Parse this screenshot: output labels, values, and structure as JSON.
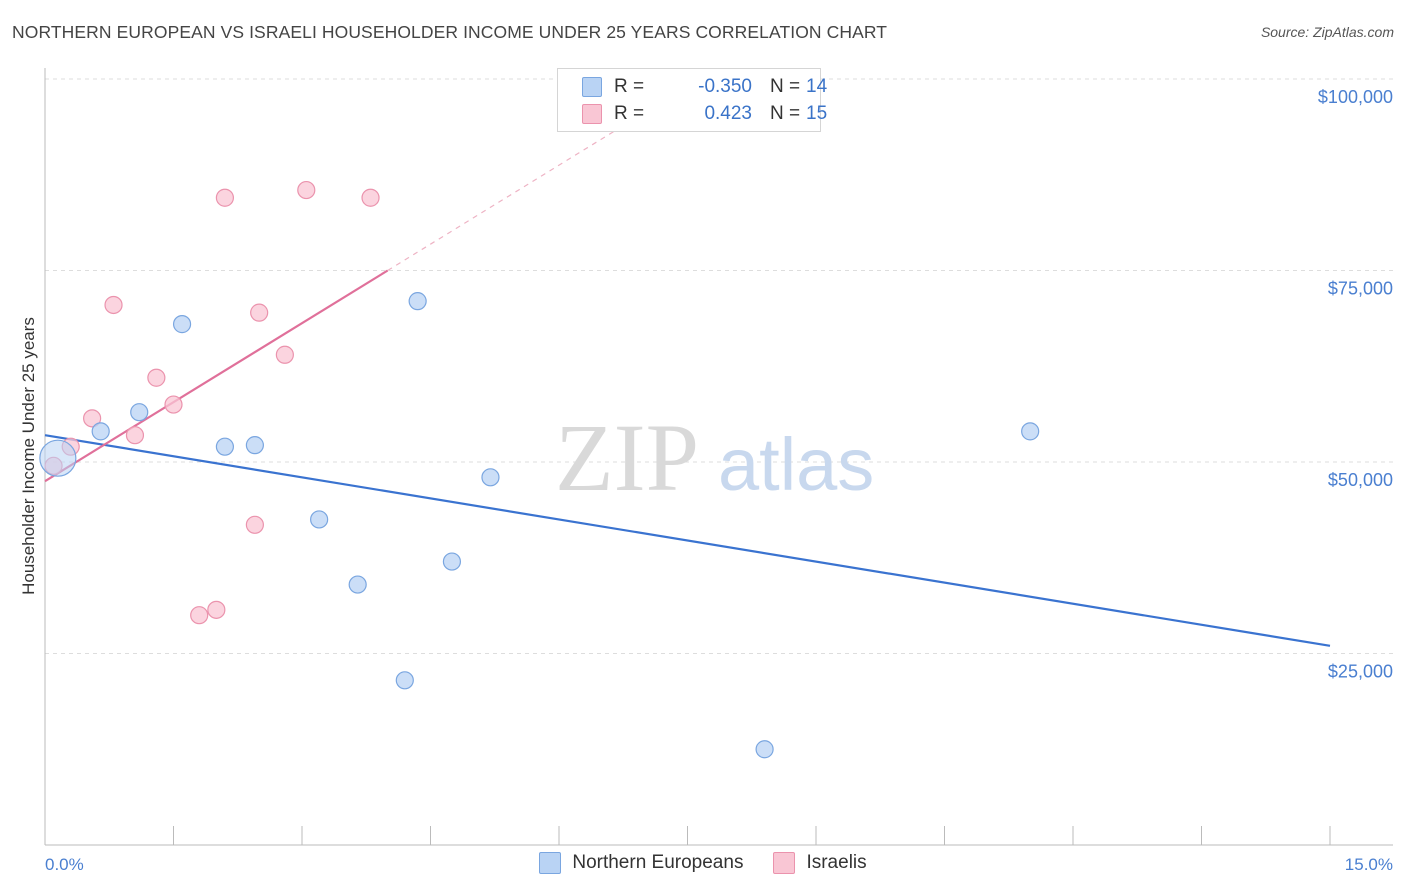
{
  "header": {
    "title": "NORTHERN EUROPEAN VS ISRAELI HOUSEHOLDER INCOME UNDER 25 YEARS CORRELATION CHART",
    "source": "Source: ZipAtlas.com"
  },
  "watermark": {
    "zip": "ZIP",
    "atlas": "atlas"
  },
  "legend": {
    "rows": [
      {
        "r_label": "R =",
        "r_value": "-0.350",
        "n_label": "N =",
        "n_value": "14"
      },
      {
        "r_label": "R =",
        "r_value": "0.423",
        "n_label": "N =",
        "n_value": "15"
      }
    ]
  },
  "colors": {
    "blue_fill": "#b9d3f4",
    "blue_stroke": "#7aa6e0",
    "blue_line": "#3a73d0",
    "pink_fill": "#f9c6d4",
    "pink_stroke": "#eb93ad",
    "pink_line": "#e0709a",
    "grid": "#dddddd",
    "axis_text": "#4a7fd0"
  },
  "chart_data": {
    "type": "scatter",
    "title": "NORTHERN EUROPEAN VS ISRAELI HOUSEHOLDER INCOME UNDER 25 YEARS CORRELATION CHART",
    "xlabel": "",
    "ylabel": "Householder Income Under 25 years",
    "xlim": [
      0,
      15
    ],
    "ylim": [
      0,
      102000
    ],
    "x_tick_labels": [
      "0.0%",
      "15.0%"
    ],
    "y_ticks": [
      {
        "value": 25000,
        "label": "$25,000"
      },
      {
        "value": 50000,
        "label": "$50,000"
      },
      {
        "value": 75000,
        "label": "$75,000"
      },
      {
        "value": 100000,
        "label": "$100,000"
      }
    ],
    "grid": true,
    "legend_position": "top-center",
    "series": [
      {
        "name": "Northern Europeans",
        "color": "blue",
        "r": -0.35,
        "n": 14,
        "points": [
          {
            "x": 0.15,
            "y": 50500,
            "big": true
          },
          {
            "x": 0.65,
            "y": 54000
          },
          {
            "x": 1.1,
            "y": 56500
          },
          {
            "x": 1.6,
            "y": 68000
          },
          {
            "x": 2.1,
            "y": 52000
          },
          {
            "x": 2.45,
            "y": 52200
          },
          {
            "x": 3.2,
            "y": 42500
          },
          {
            "x": 3.65,
            "y": 34000
          },
          {
            "x": 4.2,
            "y": 21500
          },
          {
            "x": 4.35,
            "y": 71000
          },
          {
            "x": 4.75,
            "y": 37000
          },
          {
            "x": 5.2,
            "y": 48000
          },
          {
            "x": 8.4,
            "y": 12500
          },
          {
            "x": 11.5,
            "y": 54000
          }
        ],
        "trend": {
          "x": [
            0,
            15
          ],
          "y": [
            53500,
            26000
          ]
        }
      },
      {
        "name": "Israelis",
        "color": "pink",
        "r": 0.423,
        "n": 15,
        "points": [
          {
            "x": 0.1,
            "y": 49500
          },
          {
            "x": 0.3,
            "y": 52000
          },
          {
            "x": 0.55,
            "y": 55700
          },
          {
            "x": 0.8,
            "y": 70500
          },
          {
            "x": 1.05,
            "y": 53500
          },
          {
            "x": 1.3,
            "y": 61000
          },
          {
            "x": 1.5,
            "y": 57500
          },
          {
            "x": 1.8,
            "y": 30000
          },
          {
            "x": 2.0,
            "y": 30700
          },
          {
            "x": 2.1,
            "y": 84500
          },
          {
            "x": 2.45,
            "y": 41800
          },
          {
            "x": 2.5,
            "y": 69500
          },
          {
            "x": 2.8,
            "y": 64000
          },
          {
            "x": 3.05,
            "y": 85500
          },
          {
            "x": 3.8,
            "y": 84500
          }
        ],
        "trend": {
          "x": [
            0,
            4.0
          ],
          "y": [
            47500,
            75000
          ],
          "dashed_to": {
            "x": 7.2,
            "y": 97000
          }
        }
      }
    ]
  }
}
